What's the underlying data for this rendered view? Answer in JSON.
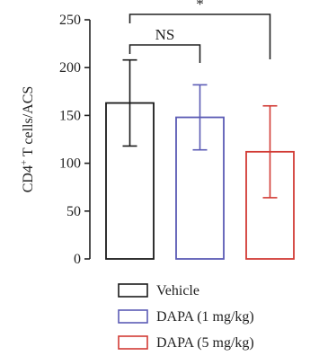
{
  "chart_data": {
    "type": "bar",
    "categories": [
      "Vehicle",
      "DAPA (1 mg/kg)",
      "DAPA (5 mg/kg)"
    ],
    "values": [
      163,
      148,
      112
    ],
    "errors": [
      45,
      34,
      48
    ],
    "ylabel": {
      "main": "CD4",
      "sup": "+",
      "rest": " T cells/ACS"
    },
    "ylim": [
      0,
      250
    ],
    "yticks": [
      0,
      50,
      100,
      150,
      200,
      250
    ],
    "legend": {
      "placement": "bottom",
      "entries": [
        "Vehicle",
        "DAPA (1 mg/kg)",
        "DAPA (5 mg/kg)"
      ]
    },
    "colors": [
      "#1a1a1a",
      "#5b5bb5",
      "#d23b35"
    ],
    "annotations": [
      {
        "text": "NS",
        "from": 0,
        "to": 1
      },
      {
        "text": "*",
        "from": 0,
        "to": 2
      }
    ]
  }
}
